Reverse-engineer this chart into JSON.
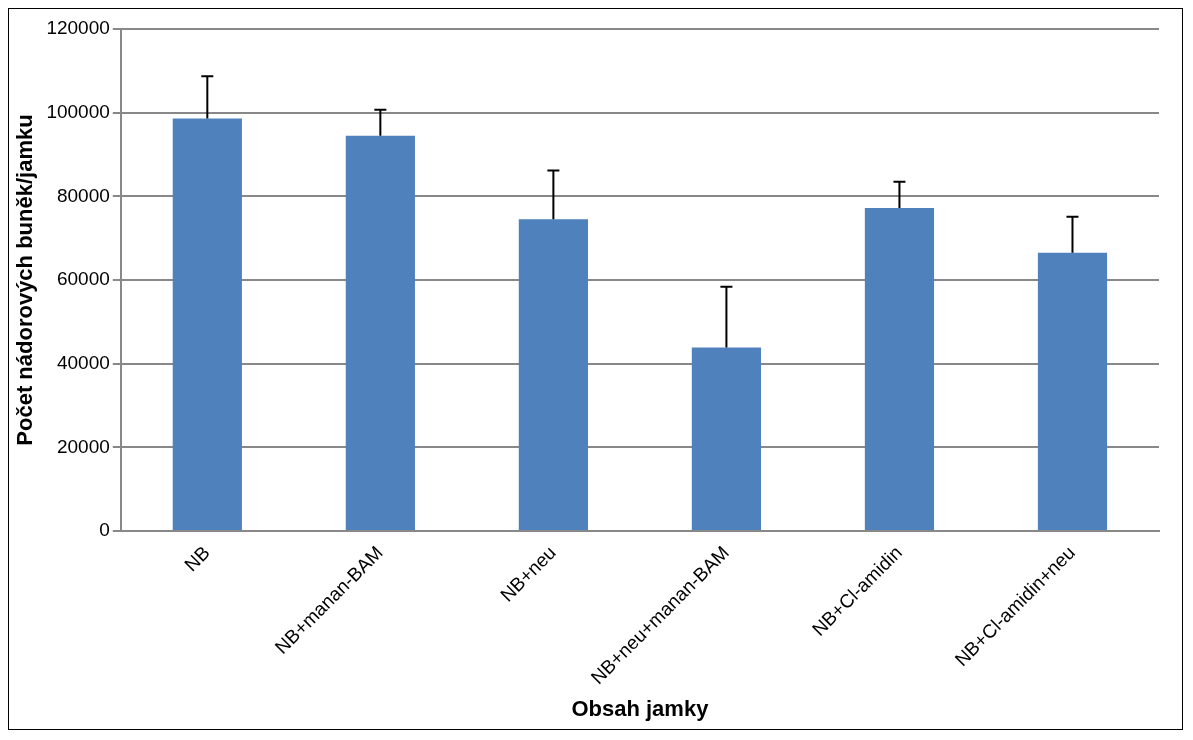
{
  "chart_data": {
    "type": "bar",
    "xlabel": "Obsah jamky",
    "ylabel": "Počet nádorových buněk/jamku",
    "categories": [
      "NB",
      "NB+manan-BAM",
      "NB+neu",
      "NB+neu+manan-BAM",
      "NB+Cl-amidin",
      "NB+Cl-amidin+neu"
    ],
    "values": [
      98600,
      94500,
      74500,
      43900,
      77200,
      66500
    ],
    "errors": [
      [
        98600,
        108700
      ],
      [
        94500,
        100700
      ],
      [
        74500,
        86200
      ],
      [
        43900,
        58400
      ],
      [
        77200,
        83500
      ],
      [
        66500,
        75100
      ]
    ],
    "color": "#4f81bd",
    "ylim": [
      0,
      120000
    ],
    "yticks": [
      0,
      20000,
      40000,
      60000,
      80000,
      100000,
      120000
    ],
    "grid": "y",
    "legend": false
  }
}
